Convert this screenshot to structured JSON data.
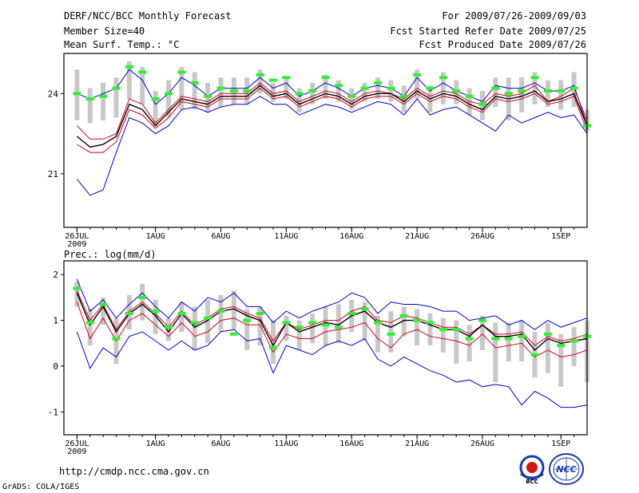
{
  "header": {
    "title": "DERF/NCC/BCC Monthly Forecast",
    "member": "Member Size=40",
    "variable": "Mean Surf. Temp.: °C",
    "period": "For 2009/07/26-2009/09/03",
    "started": "Fcst Started Refer Date 2009/07/25",
    "produced": "Fcst Produced Date 2009/07/26"
  },
  "footer": {
    "url": "http://cmdp.ncc.cma.gov.cn",
    "credit": "GrADS: COLA/IGES"
  },
  "logos": {
    "bcc": "BCC",
    "ncc": "NCC"
  },
  "colors": {
    "blue": "#0000cc",
    "red": "#d00020",
    "black": "#000000",
    "green": "#33ee33",
    "gray": "#c8c8c8"
  },
  "chart_data": [
    {
      "type": "line",
      "title": "Mean Surf. Temp.: °C",
      "xlabels": [
        {
          "day": 0,
          "text": "26JUL",
          "sub": "2009"
        },
        {
          "day": 6,
          "text": "1AUG"
        },
        {
          "day": 11,
          "text": "6AUG"
        },
        {
          "day": 16,
          "text": "11AUG"
        },
        {
          "day": 21,
          "text": "16AUG"
        },
        {
          "day": 26,
          "text": "21AUG"
        },
        {
          "day": 31,
          "text": "26AUG"
        },
        {
          "day": 37,
          "text": "1SEP"
        }
      ],
      "xlim": [
        -1,
        39
      ],
      "ylim": [
        19.0,
        25.5
      ],
      "yticks": [
        21,
        24
      ],
      "series": [
        {
          "name": "upper",
          "color": "#0000cc",
          "values": [
            24.0,
            23.8,
            24.0,
            24.2,
            24.9,
            24.5,
            23.6,
            24.0,
            24.6,
            24.3,
            23.9,
            24.2,
            24.2,
            24.2,
            24.6,
            24.2,
            24.4,
            23.9,
            24.1,
            24.4,
            24.2,
            23.9,
            24.2,
            24.3,
            24.2,
            23.9,
            24.6,
            24.1,
            24.4,
            24.1,
            23.9,
            23.7,
            24.3,
            24.2,
            24.2,
            24.4,
            24.1,
            24.1,
            24.3,
            22.8
          ]
        },
        {
          "name": "upper-red",
          "color": "#d00020",
          "values": [
            22.8,
            22.3,
            22.3,
            22.5,
            23.8,
            23.6,
            22.9,
            23.4,
            23.9,
            23.8,
            23.7,
            24.0,
            24.0,
            24.0,
            24.4,
            24.0,
            24.1,
            23.7,
            23.9,
            24.1,
            24.0,
            23.7,
            24.0,
            24.1,
            24.0,
            23.8,
            24.2,
            23.9,
            24.1,
            24.0,
            23.7,
            23.6,
            24.0,
            23.9,
            24.0,
            24.3,
            23.7,
            23.9,
            24.2,
            23.0
          ]
        },
        {
          "name": "mean",
          "color": "#000000",
          "values": [
            22.4,
            22.0,
            22.1,
            22.4,
            23.6,
            23.4,
            22.8,
            23.3,
            23.8,
            23.7,
            23.6,
            23.9,
            23.9,
            23.9,
            24.3,
            23.9,
            24.0,
            23.6,
            23.8,
            24.0,
            23.9,
            23.6,
            23.9,
            24.0,
            24.0,
            23.7,
            24.1,
            23.8,
            24.0,
            23.9,
            23.6,
            23.4,
            23.9,
            23.8,
            23.9,
            24.1,
            23.7,
            23.8,
            24.0,
            22.8
          ]
        },
        {
          "name": "lower-red",
          "color": "#d00020",
          "values": [
            22.1,
            21.8,
            21.8,
            22.2,
            23.4,
            23.2,
            22.7,
            23.1,
            23.7,
            23.6,
            23.5,
            23.8,
            23.8,
            23.8,
            24.2,
            23.8,
            23.9,
            23.5,
            23.7,
            23.9,
            23.8,
            23.5,
            23.8,
            23.9,
            23.9,
            23.6,
            24.0,
            23.7,
            23.9,
            23.8,
            23.5,
            23.3,
            23.8,
            23.7,
            23.8,
            24.0,
            23.6,
            23.7,
            23.9,
            22.6
          ]
        },
        {
          "name": "lower",
          "color": "#0000cc",
          "values": [
            20.8,
            20.2,
            20.4,
            21.8,
            23.1,
            22.9,
            22.5,
            22.8,
            23.4,
            23.5,
            23.3,
            23.5,
            23.6,
            23.6,
            23.9,
            23.6,
            23.6,
            23.2,
            23.4,
            23.6,
            23.5,
            23.3,
            23.5,
            23.7,
            23.6,
            23.2,
            23.8,
            23.2,
            23.4,
            23.5,
            23.2,
            22.9,
            22.6,
            23.2,
            22.9,
            23.1,
            23.3,
            23.1,
            23.2,
            22.5
          ]
        }
      ],
      "obs_marks": {
        "name": "observation",
        "color": "#33ee33",
        "values": [
          24.0,
          23.8,
          23.9,
          24.2,
          25.0,
          24.8,
          23.8,
          24.0,
          24.8,
          24.4,
          23.9,
          24.2,
          24.1,
          24.1,
          24.7,
          24.5,
          24.6,
          24.0,
          24.1,
          24.6,
          24.3,
          23.9,
          24.2,
          24.4,
          24.2,
          23.9,
          24.7,
          24.2,
          24.6,
          24.1,
          23.9,
          23.6,
          24.2,
          24.0,
          24.1,
          24.6,
          24.1,
          24.1,
          24.2,
          22.8
        ]
      },
      "spread_bars": [
        [
          23.0,
          24.9
        ],
        [
          22.9,
          24.2
        ],
        [
          23.0,
          24.4
        ],
        [
          23.1,
          24.6
        ],
        [
          23.8,
          25.2
        ],
        [
          23.6,
          25.0
        ],
        [
          22.8,
          24.1
        ],
        [
          23.1,
          24.5
        ],
        [
          23.4,
          25.0
        ],
        [
          23.4,
          24.8
        ],
        [
          23.3,
          24.4
        ],
        [
          23.5,
          24.6
        ],
        [
          23.6,
          24.6
        ],
        [
          23.6,
          24.6
        ],
        [
          24.0,
          24.9
        ],
        [
          23.7,
          24.4
        ],
        [
          23.8,
          24.6
        ],
        [
          23.3,
          24.2
        ],
        [
          23.6,
          24.4
        ],
        [
          23.8,
          24.7
        ],
        [
          23.7,
          24.5
        ],
        [
          23.4,
          24.2
        ],
        [
          23.7,
          24.4
        ],
        [
          23.8,
          24.6
        ],
        [
          23.7,
          24.5
        ],
        [
          23.3,
          24.3
        ],
        [
          23.8,
          24.9
        ],
        [
          23.3,
          24.3
        ],
        [
          23.6,
          24.8
        ],
        [
          23.6,
          24.5
        ],
        [
          23.2,
          24.2
        ],
        [
          23.0,
          24.1
        ],
        [
          23.5,
          24.6
        ],
        [
          23.0,
          24.6
        ],
        [
          23.3,
          24.6
        ],
        [
          23.6,
          24.8
        ],
        [
          23.5,
          24.5
        ],
        [
          23.4,
          24.5
        ],
        [
          23.5,
          24.8
        ],
        [
          22.6,
          23.4
        ]
      ]
    },
    {
      "type": "line",
      "title": "Prec.: log(mm/d)",
      "xlabels": [
        {
          "day": 0,
          "text": "26JUL",
          "sub": "2009"
        },
        {
          "day": 6,
          "text": "1AUG"
        },
        {
          "day": 11,
          "text": "6AUG"
        },
        {
          "day": 16,
          "text": "11AUG"
        },
        {
          "day": 21,
          "text": "16AUG"
        },
        {
          "day": 26,
          "text": "21AUG"
        },
        {
          "day": 31,
          "text": "26AUG"
        },
        {
          "day": 37,
          "text": "1SEP"
        }
      ],
      "xlim": [
        -1,
        39
      ],
      "ylim": [
        -1.5,
        2.3
      ],
      "yticks": [
        -1,
        0,
        1,
        2
      ],
      "series": [
        {
          "name": "upper",
          "color": "#0000cc",
          "values": [
            1.9,
            1.2,
            1.45,
            1.05,
            1.35,
            1.6,
            1.3,
            1.05,
            1.4,
            1.2,
            1.5,
            1.4,
            1.6,
            1.3,
            1.3,
            0.95,
            1.2,
            1.05,
            1.2,
            1.3,
            1.4,
            1.6,
            1.5,
            1.15,
            1.4,
            1.35,
            1.35,
            1.3,
            1.2,
            1.2,
            1.0,
            1.05,
            1.1,
            0.9,
            1.0,
            0.8,
            1.0,
            0.85,
            0.95,
            1.05
          ]
        },
        {
          "name": "upper-red",
          "color": "#d00020",
          "values": [
            1.65,
            1.0,
            1.35,
            0.8,
            1.2,
            1.4,
            1.15,
            0.85,
            1.2,
            0.9,
            1.05,
            1.25,
            1.3,
            1.15,
            1.05,
            0.55,
            0.95,
            0.8,
            0.9,
            1.0,
            1.0,
            1.2,
            1.3,
            1.0,
            0.95,
            1.1,
            1.05,
            0.95,
            0.85,
            0.85,
            0.7,
            0.9,
            0.7,
            0.7,
            0.75,
            0.45,
            0.65,
            0.55,
            0.6,
            0.7
          ]
        },
        {
          "name": "mean",
          "color": "#000000",
          "values": [
            1.6,
            0.9,
            1.3,
            0.75,
            1.15,
            1.35,
            1.1,
            0.75,
            1.15,
            0.85,
            1.0,
            1.2,
            1.25,
            1.1,
            1.0,
            0.45,
            0.95,
            0.75,
            0.85,
            0.95,
            0.9,
            1.1,
            1.2,
            0.95,
            0.85,
            1.0,
            1.0,
            0.9,
            0.8,
            0.8,
            0.65,
            0.9,
            0.65,
            0.65,
            0.7,
            0.35,
            0.6,
            0.5,
            0.55,
            0.6
          ]
        },
        {
          "name": "lower-red",
          "color": "#d00020",
          "values": [
            1.4,
            0.6,
            1.05,
            0.55,
            1.0,
            1.15,
            0.9,
            0.65,
            0.95,
            0.65,
            0.75,
            1.0,
            1.05,
            0.9,
            0.9,
            0.3,
            0.7,
            0.6,
            0.6,
            0.75,
            0.8,
            0.85,
            0.95,
            0.6,
            0.4,
            0.7,
            0.8,
            0.65,
            0.6,
            0.55,
            0.45,
            0.7,
            0.4,
            0.45,
            0.5,
            0.2,
            0.35,
            0.2,
            0.25,
            0.35
          ]
        },
        {
          "name": "lower",
          "color": "#0000cc",
          "values": [
            0.75,
            -0.05,
            0.4,
            0.2,
            0.65,
            0.75,
            0.55,
            0.35,
            0.55,
            0.35,
            0.45,
            0.75,
            0.8,
            0.55,
            0.6,
            -0.15,
            0.45,
            0.35,
            0.25,
            0.45,
            0.55,
            0.45,
            0.6,
            0.15,
            0.0,
            0.2,
            0.05,
            -0.1,
            -0.2,
            -0.35,
            -0.3,
            -0.45,
            -0.4,
            -0.45,
            -0.85,
            -0.55,
            -0.7,
            -0.9,
            -0.9,
            -0.85
          ]
        }
      ],
      "obs_marks": {
        "name": "observation",
        "color": "#33ee33",
        "values": [
          1.7,
          0.95,
          1.35,
          0.6,
          1.15,
          1.5,
          1.2,
          0.85,
          1.15,
          0.95,
          1.05,
          1.2,
          0.7,
          1.0,
          1.15,
          0.4,
          0.95,
          0.85,
          0.95,
          0.9,
          0.85,
          1.15,
          1.25,
          0.95,
          0.7,
          1.1,
          1.0,
          0.95,
          0.8,
          0.8,
          0.6,
          1.0,
          0.6,
          0.6,
          0.65,
          0.25,
          0.7,
          0.45,
          0.55,
          0.65
        ]
      },
      "spread_bars": [
        [
          1.3,
          1.85
        ],
        [
          0.45,
          1.25
        ],
        [
          0.9,
          1.5
        ],
        [
          0.05,
          1.05
        ],
        [
          0.8,
          1.55
        ],
        [
          1.0,
          1.8
        ],
        [
          0.7,
          1.45
        ],
        [
          0.55,
          1.05
        ],
        [
          0.75,
          1.4
        ],
        [
          0.35,
          1.3
        ],
        [
          0.5,
          1.45
        ],
        [
          0.75,
          1.55
        ],
        [
          0.8,
          1.65
        ],
        [
          0.35,
          1.25
        ],
        [
          0.45,
          1.3
        ],
        [
          0.05,
          1.0
        ],
        [
          0.55,
          1.1
        ],
        [
          0.35,
          1.0
        ],
        [
          0.5,
          1.15
        ],
        [
          0.45,
          1.3
        ],
        [
          0.5,
          1.35
        ],
        [
          0.75,
          1.45
        ],
        [
          0.55,
          1.4
        ],
        [
          0.3,
          1.1
        ],
        [
          0.3,
          1.2
        ],
        [
          0.65,
          1.3
        ],
        [
          0.45,
          1.25
        ],
        [
          0.45,
          1.15
        ],
        [
          0.3,
          1.05
        ],
        [
          0.05,
          1.0
        ],
        [
          0.1,
          0.9
        ],
        [
          0.35,
          1.1
        ],
        [
          -0.35,
          0.95
        ],
        [
          0.1,
          0.95
        ],
        [
          0.1,
          1.0
        ],
        [
          -0.25,
          0.75
        ],
        [
          -0.15,
          0.95
        ],
        [
          -0.45,
          0.7
        ],
        [
          0.0,
          0.85
        ],
        [
          -0.35,
          1.0
        ]
      ]
    }
  ]
}
